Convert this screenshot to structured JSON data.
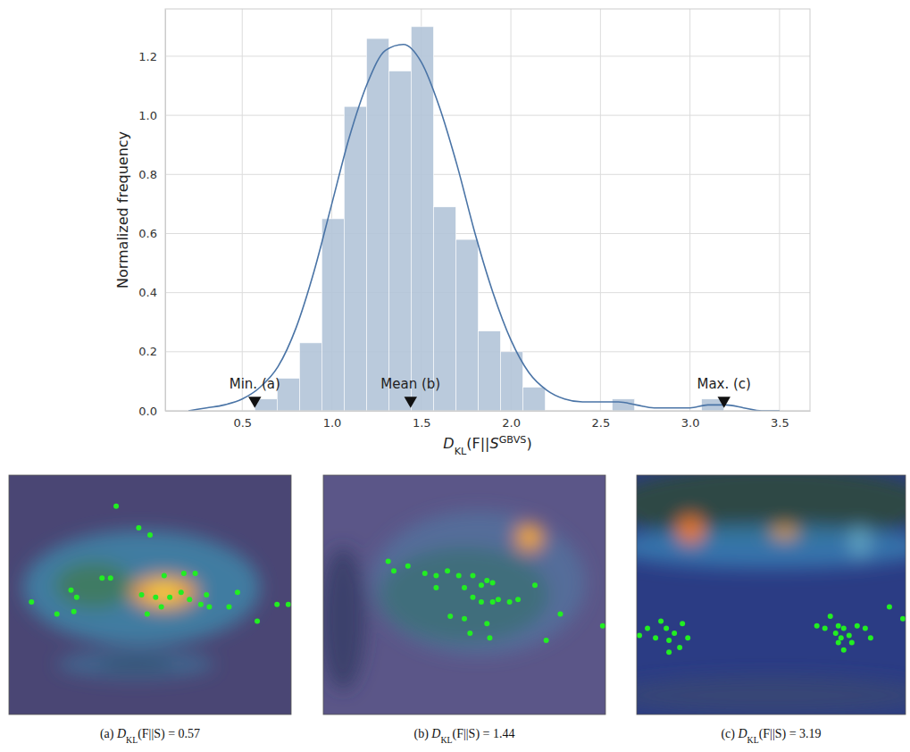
{
  "chart_data": [
    {
      "type": "histogram",
      "xlabel": "DKL(F||SGBVS)",
      "ylabel": "Normalized frequency",
      "bins": [
        0.57,
        0.695,
        0.82,
        0.944,
        1.069,
        1.194,
        1.319,
        1.443,
        1.568,
        1.693,
        1.818,
        1.942,
        2.067,
        2.192,
        2.317,
        2.441,
        2.566,
        2.691,
        2.816,
        2.94,
        3.065,
        3.19
      ],
      "values": [
        0.04,
        0.11,
        0.23,
        0.65,
        1.03,
        1.26,
        1.15,
        1.3,
        0.69,
        0.58,
        0.27,
        0.2,
        0.08,
        0,
        0,
        0,
        0.04,
        0,
        0,
        0,
        0.04
      ],
      "color": "#b3c4d8",
      "curve": {
        "x": [
          0.2,
          0.3,
          0.4,
          0.5,
          0.6,
          0.7,
          0.8,
          0.9,
          1.0,
          1.1,
          1.2,
          1.3,
          1.4,
          1.5,
          1.6,
          1.7,
          1.8,
          1.9,
          2.0,
          2.1,
          2.2,
          2.3,
          2.4,
          2.5,
          2.6,
          2.7,
          2.8,
          2.9,
          3.0,
          3.1,
          3.2,
          3.3,
          3.4,
          3.5
        ],
        "values": [
          0.0,
          0.01,
          0.02,
          0.04,
          0.08,
          0.15,
          0.28,
          0.47,
          0.7,
          0.93,
          1.11,
          1.22,
          1.24,
          1.18,
          1.03,
          0.83,
          0.6,
          0.4,
          0.24,
          0.13,
          0.07,
          0.04,
          0.03,
          0.03,
          0.03,
          0.02,
          0.01,
          0.01,
          0.01,
          0.02,
          0.02,
          0.01,
          0.0,
          0.0
        ],
        "color": "#4a74a6"
      },
      "annotations": [
        {
          "text": "Min. (a)",
          "x": 0.57,
          "y": 0.02
        },
        {
          "text": "Mean (b)",
          "x": 1.44,
          "y": 0.02
        },
        {
          "text": "Max. (c)",
          "x": 3.19,
          "y": 0.02
        }
      ],
      "xlim": [
        0.07,
        3.67
      ],
      "ylim": [
        0,
        1.36
      ],
      "xticks": [
        0.5,
        {
          "value": 1,
          "label": "1.0"
        },
        1.5,
        {
          "value": 2,
          "label": "2.0"
        },
        2.5,
        {
          "value": 3,
          "label": "3.0"
        },
        3.5
      ],
      "yticks": [
        {
          "value": 0,
          "label": "0.0"
        },
        0.2,
        0.4,
        0.6,
        0.8,
        {
          "value": 1,
          "label": "1.0"
        },
        1.2
      ],
      "grid": true
    },
    {
      "type": "scatter",
      "title": "(a) DKL(F||S) = 0.57",
      "x": [
        0.38,
        0.46,
        0.5,
        0.33,
        0.36,
        0.55,
        0.62,
        0.66,
        0.22,
        0.24,
        0.08,
        0.17,
        0.23,
        0.47,
        0.52,
        0.57,
        0.61,
        0.64,
        0.54,
        0.49,
        0.68,
        0.71,
        0.78,
        0.81,
        0.88,
        0.95,
        0.99,
        0.7
      ],
      "values": [
        0.13,
        0.22,
        0.25,
        0.43,
        0.43,
        0.42,
        0.41,
        0.41,
        0.48,
        0.51,
        0.53,
        0.58,
        0.57,
        0.5,
        0.51,
        0.51,
        0.49,
        0.52,
        0.55,
        0.58,
        0.54,
        0.55,
        0.55,
        0.49,
        0.61,
        0.54,
        0.54,
        0.5
      ],
      "xlim": [
        0,
        1
      ],
      "ylim": [
        1,
        0
      ],
      "color": "#22ee22",
      "tick_labels": false
    },
    {
      "type": "scatter",
      "title": "(b) DKL(F||S) = 1.44",
      "x": [
        0.23,
        0.25,
        0.3,
        0.36,
        0.4,
        0.44,
        0.48,
        0.53,
        0.58,
        0.4,
        0.5,
        0.56,
        0.6,
        0.53,
        0.56,
        0.6,
        0.62,
        0.66,
        0.69,
        0.45,
        0.5,
        0.58,
        0.75,
        0.84,
        0.79,
        0.59,
        0.99,
        0.52
      ],
      "values": [
        0.36,
        0.4,
        0.38,
        0.41,
        0.42,
        0.4,
        0.42,
        0.42,
        0.44,
        0.47,
        0.47,
        0.46,
        0.45,
        0.51,
        0.53,
        0.53,
        0.52,
        0.53,
        0.52,
        0.59,
        0.6,
        0.62,
        0.46,
        0.58,
        0.69,
        0.68,
        0.63,
        0.66
      ],
      "xlim": [
        0,
        1
      ],
      "ylim": [
        1,
        0
      ],
      "color": "#22ee22",
      "tick_labels": false
    },
    {
      "type": "scatter",
      "title": "(c) DKL(F||S) = 3.19",
      "x": [
        0.01,
        0.04,
        0.09,
        0.11,
        0.14,
        0.17,
        0.12,
        0.16,
        0.07,
        0.12,
        0.19,
        0.67,
        0.7,
        0.74,
        0.75,
        0.77,
        0.76,
        0.79,
        0.75,
        0.8,
        0.82,
        0.72,
        0.85,
        0.87,
        0.94,
        0.99,
        0.77
      ],
      "values": [
        0.67,
        0.64,
        0.61,
        0.64,
        0.66,
        0.62,
        0.69,
        0.72,
        0.68,
        0.74,
        0.68,
        0.63,
        0.64,
        0.66,
        0.63,
        0.64,
        0.68,
        0.67,
        0.7,
        0.7,
        0.63,
        0.59,
        0.64,
        0.68,
        0.55,
        0.6,
        0.73
      ],
      "xlim": [
        0,
        1
      ],
      "ylim": [
        1,
        0
      ],
      "color": "#22ee22",
      "tick_labels": false
    }
  ]
}
